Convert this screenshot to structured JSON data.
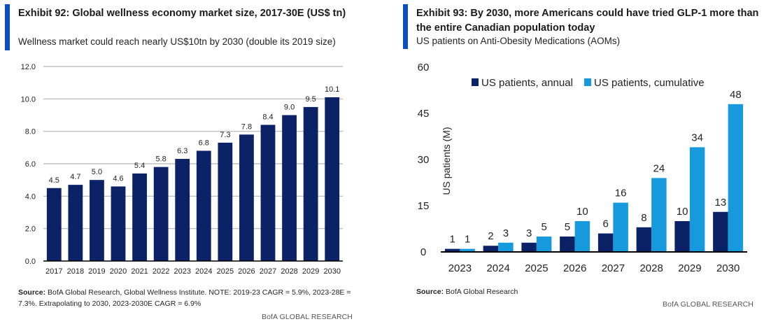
{
  "colors": {
    "accent": "#0a4fc1",
    "annual": "#0c2266",
    "cumulative": "#1799dd",
    "bar_left": "#0c2266",
    "grid": "#b4b4b4",
    "axis": "#000000"
  },
  "left": {
    "title": "Exhibit 92: Global wellness economy market size, 2017-30E (US$ tn)",
    "subtitle": "Wellness market could reach nearly US$10tn by 2030 (double its 2019 size)",
    "source_label": "Source:",
    "source_text": " BofA Global Research, Global Wellness Institute. NOTE: 2019-23 CAGR = 5.9%, 2023-28E = 7.3%. Extrapolating to 2030, 2023-2030E CAGR = 6.9%",
    "brand": "BofA GLOBAL RESEARCH"
  },
  "right": {
    "title": "Exhibit 93: By 2030, more Americans could have tried GLP-1 more than the entire Canadian population today",
    "subtitle": "US patients on Anti-Obesity Medications (AOMs)",
    "source_label": "Source:",
    "source_text": " BofA Global Research",
    "brand": "BofA GLOBAL RESEARCH"
  },
  "chart_data": [
    {
      "type": "bar",
      "title": "Exhibit 92: Global wellness economy market size, 2017-30E (US$ tn)",
      "xlabel": "",
      "ylabel": "",
      "categories": [
        "2017",
        "2018",
        "2019",
        "2020",
        "2021",
        "2022",
        "2023",
        "2024",
        "2025",
        "2026",
        "2027",
        "2028",
        "2029",
        "2030"
      ],
      "values": [
        4.5,
        4.7,
        5.0,
        4.6,
        5.4,
        5.8,
        6.3,
        6.8,
        7.3,
        7.8,
        8.4,
        9.0,
        9.5,
        10.1
      ],
      "data_labels": [
        "4.5",
        "4.7",
        "5.0",
        "4.6",
        "5.4",
        "5.8",
        "6.3",
        "6.8",
        "7.3",
        "7.8",
        "8.4",
        "9.0",
        "9.5",
        "10.1"
      ],
      "ylim": [
        0,
        12
      ],
      "yticks": [
        0,
        2,
        4,
        6,
        8,
        10,
        12
      ],
      "ytick_labels": [
        "0.0",
        "2.0",
        "4.0",
        "6.0",
        "8.0",
        "10.0",
        "12.0"
      ],
      "grid": true,
      "legend": "none"
    },
    {
      "type": "bar",
      "title": "Exhibit 93: By 2030, more Americans could have tried GLP-1 more than the entire Canadian population today",
      "xlabel": "",
      "ylabel": "US patients (M)",
      "categories": [
        "2023",
        "2024",
        "2025",
        "2026",
        "2027",
        "2028",
        "2029",
        "2030"
      ],
      "series": [
        {
          "name": "US patients, annual",
          "values": [
            1,
            2,
            3,
            5,
            6,
            8,
            10,
            13
          ]
        },
        {
          "name": "US patients, cumulative",
          "values": [
            1,
            3,
            5,
            10,
            16,
            24,
            34,
            48
          ]
        }
      ],
      "ylim": [
        0,
        60
      ],
      "yticks": [
        0,
        15,
        30,
        45,
        60
      ],
      "ytick_labels": [
        "0",
        "15",
        "30",
        "45",
        "60"
      ],
      "grid": false,
      "legend": "top"
    }
  ]
}
